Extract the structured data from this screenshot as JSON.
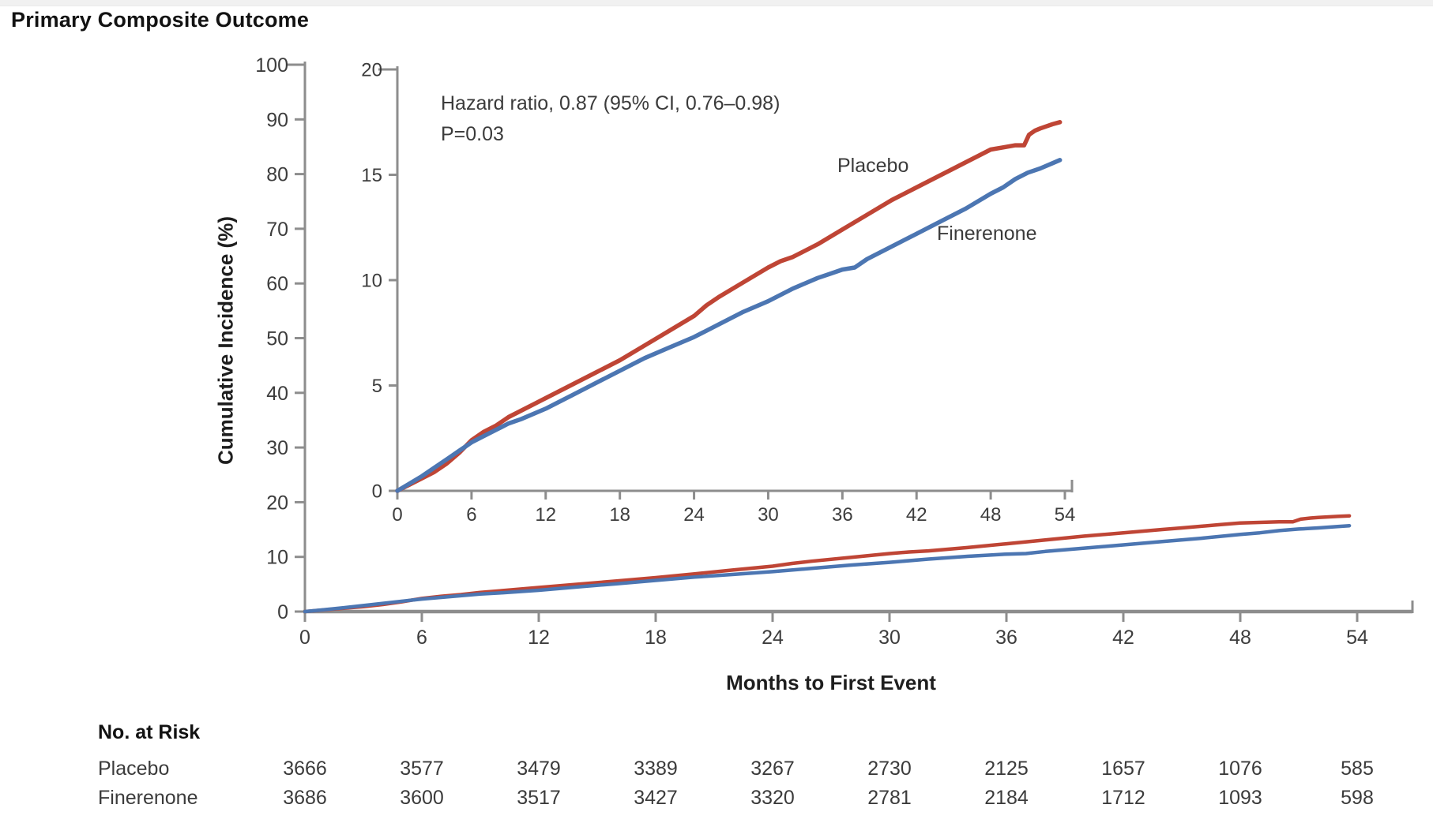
{
  "colors": {
    "placebo": "#bf4535",
    "finerenone": "#4c76b2",
    "axis": "#8d8d8d",
    "tick_text": "#3d3d3d",
    "title_text": "#121212"
  },
  "chart_data": [
    {
      "id": "main",
      "type": "line",
      "title": "Primary Composite Outcome",
      "xlabel": "Months to First Event",
      "ylabel": "Cumulative Incidence (%)",
      "xlim": [
        0,
        54
      ],
      "ylim": [
        0,
        100
      ],
      "x_ticks": [
        0,
        6,
        12,
        18,
        24,
        30,
        36,
        42,
        48,
        54
      ],
      "y_ticks": [
        0,
        10,
        20,
        30,
        40,
        50,
        60,
        70,
        80,
        90,
        100
      ],
      "grid": false,
      "legend_position": "inline-labels",
      "series": [
        {
          "name": "Placebo",
          "color": "#bf4535",
          "x": [
            0,
            1,
            2,
            3,
            4,
            5,
            6,
            7,
            8,
            9,
            10,
            12,
            14,
            16,
            18,
            20,
            22,
            24,
            25,
            26,
            28,
            30,
            31,
            32,
            34,
            36,
            38,
            40,
            42,
            44,
            45,
            46,
            47,
            48,
            49,
            50,
            50.7,
            51.1,
            51.6,
            52,
            53,
            53.6
          ],
          "y": [
            0,
            0.3,
            0.6,
            0.9,
            1.3,
            1.8,
            2.4,
            2.8,
            3.1,
            3.5,
            3.8,
            4.4,
            5.0,
            5.6,
            6.2,
            6.9,
            7.6,
            8.3,
            8.8,
            9.2,
            9.9,
            10.6,
            10.9,
            11.1,
            11.7,
            12.4,
            13.1,
            13.8,
            14.4,
            15.0,
            15.3,
            15.6,
            15.9,
            16.2,
            16.3,
            16.4,
            16.4,
            16.9,
            17.1,
            17.2,
            17.4,
            17.5
          ]
        },
        {
          "name": "Finerenone",
          "color": "#4c76b2",
          "x": [
            0,
            1,
            2,
            3,
            4,
            5,
            6,
            7,
            8,
            9,
            10,
            12,
            14,
            16,
            18,
            20,
            22,
            24,
            26,
            28,
            30,
            32,
            34,
            35,
            36,
            37,
            38,
            40,
            42,
            44,
            46,
            48,
            49,
            50,
            51,
            52,
            53,
            53.6
          ],
          "y": [
            0,
            0.35,
            0.7,
            1.1,
            1.5,
            1.9,
            2.3,
            2.6,
            2.9,
            3.2,
            3.4,
            3.9,
            4.5,
            5.1,
            5.7,
            6.3,
            6.8,
            7.3,
            7.9,
            8.5,
            9.0,
            9.6,
            10.1,
            10.3,
            10.5,
            10.6,
            11.0,
            11.6,
            12.2,
            12.8,
            13.4,
            14.1,
            14.4,
            14.8,
            15.1,
            15.3,
            15.55,
            15.7
          ]
        }
      ]
    },
    {
      "id": "inset",
      "type": "line",
      "title": "",
      "xlabel": "",
      "ylabel": "",
      "xlim": [
        0,
        54
      ],
      "ylim": [
        0,
        20
      ],
      "x_ticks": [
        0,
        6,
        12,
        18,
        24,
        30,
        36,
        42,
        48,
        54
      ],
      "y_ticks": [
        0,
        5,
        10,
        15,
        20
      ],
      "grid": false,
      "annotation": [
        "Hazard ratio, 0.87 (95% CI, 0.76–0.98)",
        "P=0.03"
      ],
      "series": [
        {
          "name": "Placebo",
          "color": "#bf4535",
          "x": [
            0,
            1,
            2,
            3,
            4,
            5,
            6,
            7,
            8,
            9,
            10,
            12,
            14,
            16,
            18,
            20,
            22,
            24,
            25,
            26,
            28,
            30,
            31,
            32,
            34,
            36,
            38,
            40,
            42,
            44,
            45,
            46,
            47,
            48,
            49,
            50,
            50.7,
            51.1,
            51.6,
            52,
            53,
            53.6
          ],
          "y": [
            0,
            0.3,
            0.6,
            0.9,
            1.3,
            1.8,
            2.4,
            2.8,
            3.1,
            3.5,
            3.8,
            4.4,
            5.0,
            5.6,
            6.2,
            6.9,
            7.6,
            8.3,
            8.8,
            9.2,
            9.9,
            10.6,
            10.9,
            11.1,
            11.7,
            12.4,
            13.1,
            13.8,
            14.4,
            15.0,
            15.3,
            15.6,
            15.9,
            16.2,
            16.3,
            16.4,
            16.4,
            16.9,
            17.1,
            17.2,
            17.4,
            17.5
          ]
        },
        {
          "name": "Finerenone",
          "color": "#4c76b2",
          "x": [
            0,
            1,
            2,
            3,
            4,
            5,
            6,
            7,
            8,
            9,
            10,
            12,
            14,
            16,
            18,
            20,
            22,
            24,
            26,
            28,
            30,
            32,
            34,
            35,
            36,
            37,
            38,
            40,
            42,
            44,
            46,
            48,
            49,
            50,
            51,
            52,
            53,
            53.6
          ],
          "y": [
            0,
            0.35,
            0.7,
            1.1,
            1.5,
            1.9,
            2.3,
            2.6,
            2.9,
            3.2,
            3.4,
            3.9,
            4.5,
            5.1,
            5.7,
            6.3,
            6.8,
            7.3,
            7.9,
            8.5,
            9.0,
            9.6,
            10.1,
            10.3,
            10.5,
            10.6,
            11.0,
            11.6,
            12.2,
            12.8,
            13.4,
            14.1,
            14.4,
            14.8,
            15.1,
            15.3,
            15.55,
            15.7
          ]
        }
      ]
    }
  ],
  "risk_table": {
    "heading": "No. at Risk",
    "timepoints": [
      0,
      6,
      12,
      18,
      24,
      30,
      36,
      42,
      48,
      54
    ],
    "rows": [
      {
        "label": "Placebo",
        "values": [
          3666,
          3577,
          3479,
          3389,
          3267,
          2730,
          2125,
          1657,
          1076,
          585
        ]
      },
      {
        "label": "Finerenone",
        "values": [
          3686,
          3600,
          3517,
          3427,
          3320,
          2781,
          2184,
          1712,
          1093,
          598
        ]
      }
    ]
  }
}
